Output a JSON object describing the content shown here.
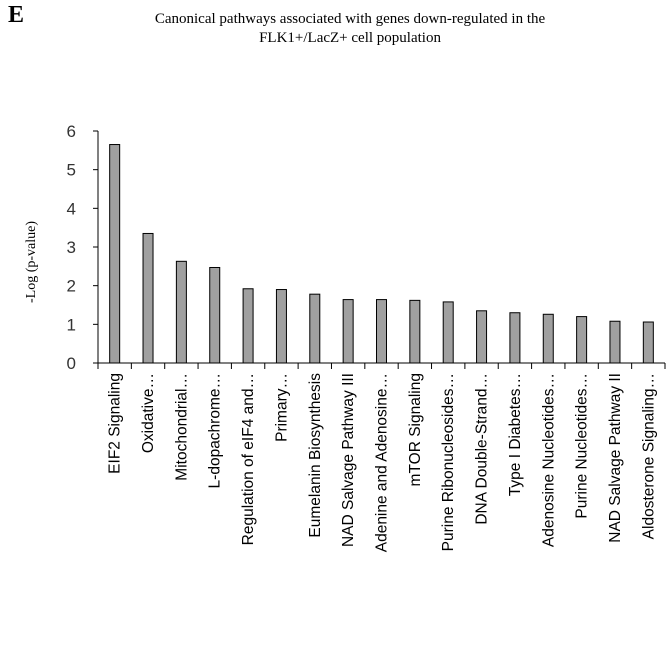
{
  "panel_letter": "E",
  "chart_data": {
    "type": "bar",
    "title_line1": "Canonical pathways associated with genes down-regulated in the",
    "title_line2": "FLK1+/LacZ+ cell population",
    "xlabel": "",
    "ylabel": "-Log (p-value)",
    "ylim": [
      0,
      6
    ],
    "yticks": [
      "0",
      "1",
      "2",
      "3",
      "4",
      "5",
      "6"
    ],
    "grid": false,
    "bar_color": "#a0a0a0",
    "categories": [
      "EIF2 Signaling",
      "Oxidative…",
      "Mitochondrial…",
      "L-dopachrome…",
      "Regulation of eIF4 and…",
      "Primary…",
      "Eumelanin Biosynthesis",
      "NAD Salvage Pathway III",
      "Adenine and Adenosine…",
      "mTOR Signaling",
      "Purine Ribonucleosides…",
      "DNA Double-Strand…",
      "Type I Diabetes…",
      "Adenosine Nucleotides…",
      "Purine Nucleotides…",
      "NAD Salvage Pathway II",
      "Aldosterone Signaling…"
    ],
    "values": [
      5.65,
      3.35,
      2.63,
      2.47,
      1.92,
      1.9,
      1.78,
      1.64,
      1.64,
      1.62,
      1.58,
      1.35,
      1.3,
      1.26,
      1.2,
      1.08,
      1.06
    ]
  }
}
